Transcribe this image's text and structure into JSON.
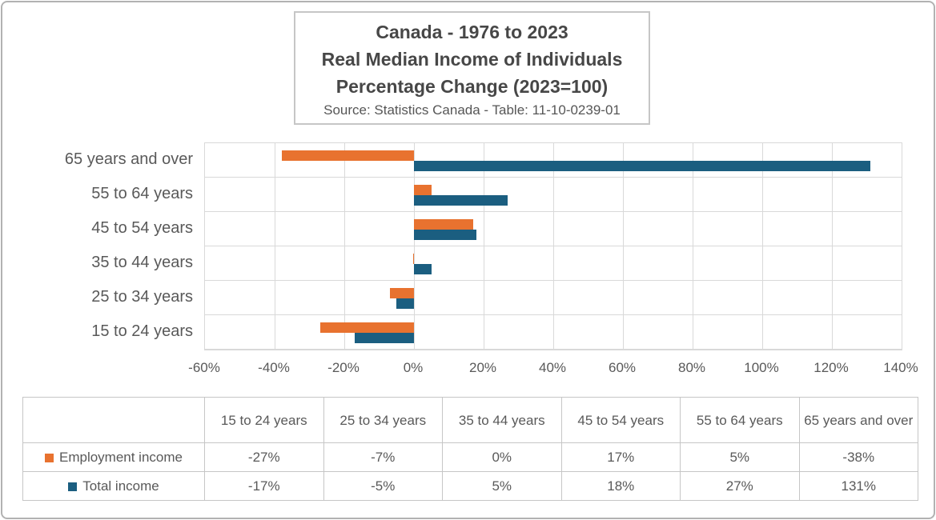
{
  "title": {
    "line1": "Canada - 1976 to 2023",
    "line2": "Real Median Income of Individuals",
    "line3": "Percentage Change (2023=100)",
    "source": "Source: Statistics Canada - Table: 11-10-0239-01"
  },
  "chart_data": {
    "type": "bar",
    "orientation": "horizontal",
    "title": "Canada - 1976 to 2023 Real Median Income of Individuals Percentage Change (2023=100)",
    "categories": [
      "15 to 24 years",
      "25 to 34 years",
      "35 to 44 years",
      "45 to 54 years",
      "55 to 64 years",
      "65 years and over"
    ],
    "category_axis_note": "plotted bottom-to-top; 65 years and over appears at the top of the chart",
    "series": [
      {
        "name": "Employment income",
        "color": "#e8722f",
        "values": [
          -27,
          -7,
          0,
          17,
          5,
          -38
        ]
      },
      {
        "name": "Total income",
        "color": "#1b5e80",
        "values": [
          -17,
          -5,
          5,
          18,
          27,
          131
        ]
      }
    ],
    "value_unit": "%",
    "xlim": [
      -60,
      140
    ],
    "x_ticks": [
      -60,
      -40,
      -20,
      0,
      20,
      40,
      60,
      80,
      100,
      120,
      140
    ],
    "x_tick_labels": [
      "-60%",
      "-40%",
      "-20%",
      "0%",
      "20%",
      "40%",
      "60%",
      "80%",
      "100%",
      "120%",
      "140%"
    ],
    "grid": true,
    "legend_position": "data table below chart"
  },
  "table": {
    "columns": [
      "15 to 24 years",
      "25 to 34 years",
      "35 to 44 years",
      "45 to 54 years",
      "55 to 64 years",
      "65 years and over"
    ],
    "rows": [
      {
        "label": "Employment income",
        "swatch_color": "#e8722f",
        "values": [
          "-27%",
          "-7%",
          "0%",
          "17%",
          "5%",
          "-38%"
        ]
      },
      {
        "label": "Total income",
        "swatch_color": "#1b5e80",
        "values": [
          "-17%",
          "-5%",
          "5%",
          "18%",
          "27%",
          "131%"
        ]
      }
    ]
  },
  "colors": {
    "employment_income": "#e8722f",
    "total_income": "#1b5e80",
    "gridline": "#d9d9d9",
    "table_border": "#c6c6c6",
    "text": "#595959"
  }
}
